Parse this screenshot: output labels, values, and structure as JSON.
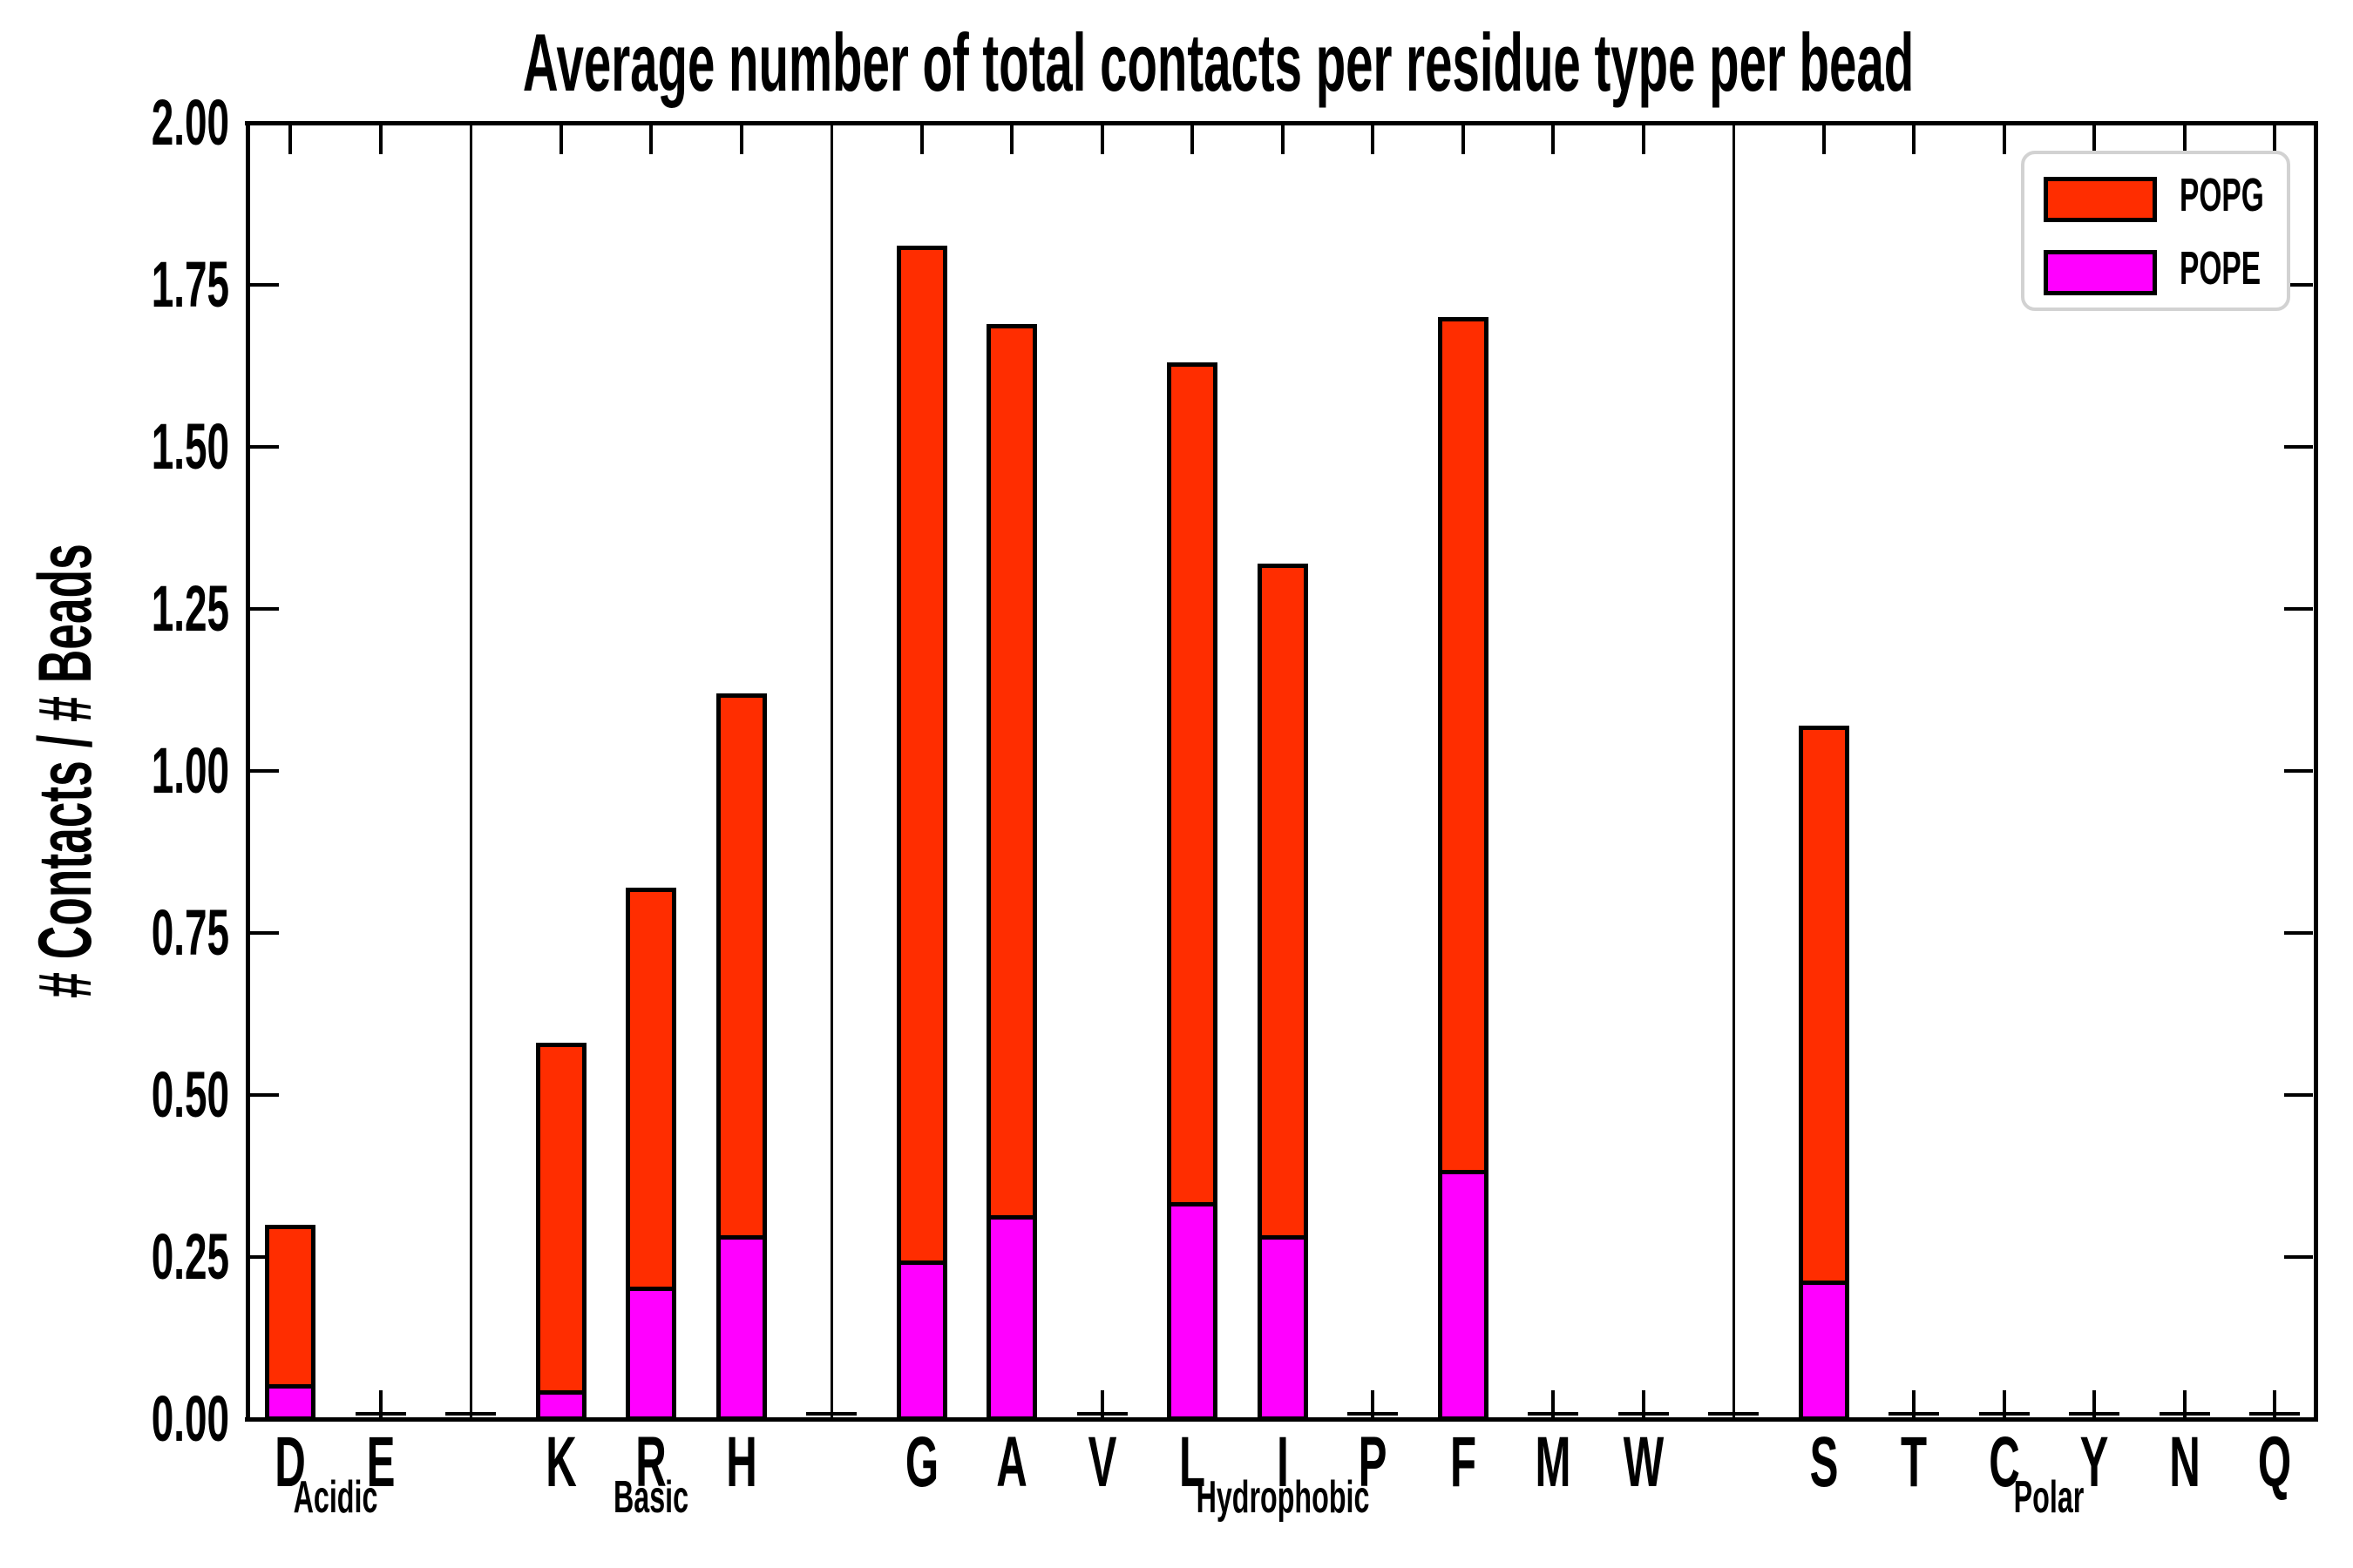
{
  "title": "Average number of total contacts per residue type per bead",
  "ylabel": "# Contacts / # Beads",
  "legend": {
    "position": "upper right",
    "items": [
      {
        "label": "POPG",
        "color": "#ff2d00"
      },
      {
        "label": "POPE",
        "color": "#ff00ff"
      }
    ]
  },
  "chart_data": {
    "type": "bar",
    "stacked": true,
    "stack_order": [
      "POPE",
      "POPG"
    ],
    "title": "Average number of total contacts per residue type per bead",
    "xlabel": "",
    "ylabel": "# Contacts / # Beads",
    "ylim": [
      0,
      2
    ],
    "grid": false,
    "yticks": [
      "2.00",
      "1.75",
      "1.50",
      "1.25",
      "1.00",
      "0.75",
      "0.50",
      "0.25",
      "0.00"
    ],
    "categories": [
      "D",
      "E",
      "K",
      "R",
      "H",
      "G",
      "A",
      "V",
      "L",
      "I",
      "P",
      "F",
      "M",
      "W",
      "S",
      "T",
      "C",
      "Y",
      "N",
      "Q"
    ],
    "groups": [
      {
        "label": "Acidic",
        "categories": [
          "D",
          "E"
        ]
      },
      {
        "label": "Basic",
        "categories": [
          "K",
          "R",
          "H"
        ]
      },
      {
        "label": "Hydrophobic",
        "categories": [
          "G",
          "A",
          "V",
          "L",
          "I",
          "P",
          "F",
          "M",
          "W"
        ]
      },
      {
        "label": "Polar",
        "categories": [
          "S",
          "T",
          "C",
          "Y",
          "N",
          "Q"
        ]
      }
    ],
    "series": [
      {
        "name": "POPE",
        "color": "#ff00ff",
        "values": [
          0.05,
          0,
          0.04,
          0.2,
          0.28,
          0.24,
          0.31,
          0,
          0.33,
          0.28,
          0,
          0.38,
          0,
          0,
          0.21,
          0,
          0,
          0,
          0,
          0
        ]
      },
      {
        "name": "POPG",
        "color": "#ff2d00",
        "values": [
          0.25,
          0,
          0.54,
          0.62,
          0.84,
          1.57,
          1.38,
          0,
          1.3,
          1.04,
          0,
          1.32,
          0,
          0,
          0.86,
          0,
          0,
          0,
          0,
          0
        ]
      }
    ],
    "totals": [
      0.3,
      0,
      0.58,
      0.82,
      1.12,
      1.81,
      1.69,
      0,
      1.63,
      1.32,
      0,
      1.7,
      0,
      0,
      1.07,
      0,
      0,
      0,
      0,
      0
    ]
  }
}
